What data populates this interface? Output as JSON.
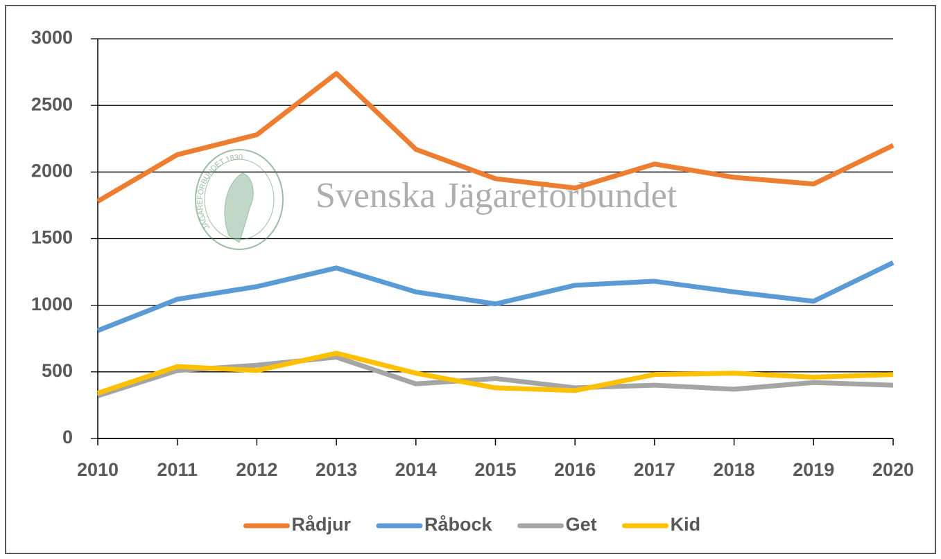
{
  "chart_data": {
    "type": "line",
    "watermark": "Svenska Jägareförbundet",
    "watermark_logo": "JÄGAREFÖRBUNDET 1830",
    "x": [
      2010,
      2011,
      2012,
      2013,
      2014,
      2015,
      2016,
      2017,
      2018,
      2019,
      2020
    ],
    "series": [
      {
        "name": "Rådjur",
        "color": "#ed7d31",
        "values": [
          1780,
          2130,
          2280,
          2740,
          2170,
          1950,
          1880,
          2060,
          1960,
          1910,
          2200
        ]
      },
      {
        "name": "Råbock",
        "color": "#5b9bd5",
        "values": [
          810,
          1045,
          1140,
          1280,
          1100,
          1010,
          1150,
          1180,
          1100,
          1030,
          1320
        ]
      },
      {
        "name": "Get",
        "color": "#a5a5a5",
        "values": [
          320,
          510,
          550,
          610,
          410,
          450,
          380,
          400,
          370,
          420,
          400
        ]
      },
      {
        "name": "Kid",
        "color": "#ffc000",
        "values": [
          340,
          540,
          510,
          640,
          490,
          380,
          360,
          480,
          490,
          460,
          480
        ]
      }
    ],
    "xlim": [
      2010,
      2020
    ],
    "xticks": [
      2010,
      2011,
      2012,
      2013,
      2014,
      2015,
      2016,
      2017,
      2018,
      2019,
      2020
    ],
    "ylim": [
      0,
      3000
    ],
    "yticks": [
      0,
      500,
      1000,
      1500,
      2000,
      2500,
      3000
    ],
    "grid": true,
    "legend": "bottom"
  }
}
